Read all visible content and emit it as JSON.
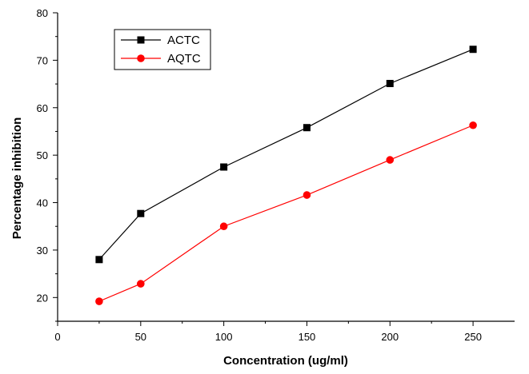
{
  "chart_data": {
    "type": "line",
    "title": "",
    "xlabel": "Concentration (ug/ml)",
    "ylabel": "Percentage inhibition",
    "xlim": [
      0,
      275
    ],
    "ylim": [
      15,
      80
    ],
    "xticks": [
      0,
      50,
      100,
      150,
      200,
      250
    ],
    "yticks": [
      20,
      30,
      40,
      50,
      60,
      70,
      80
    ],
    "x": [
      25,
      50,
      100,
      150,
      200,
      250
    ],
    "series": [
      {
        "name": "ACTC",
        "color": "#000000",
        "marker": "square",
        "values": [
          28.0,
          37.7,
          47.5,
          55.8,
          65.1,
          72.3
        ]
      },
      {
        "name": "AQTC",
        "color": "#ff0000",
        "marker": "circle",
        "values": [
          19.2,
          22.9,
          35.0,
          41.6,
          49.0,
          56.3
        ]
      }
    ],
    "legend_position": "top-left",
    "grid": false
  }
}
